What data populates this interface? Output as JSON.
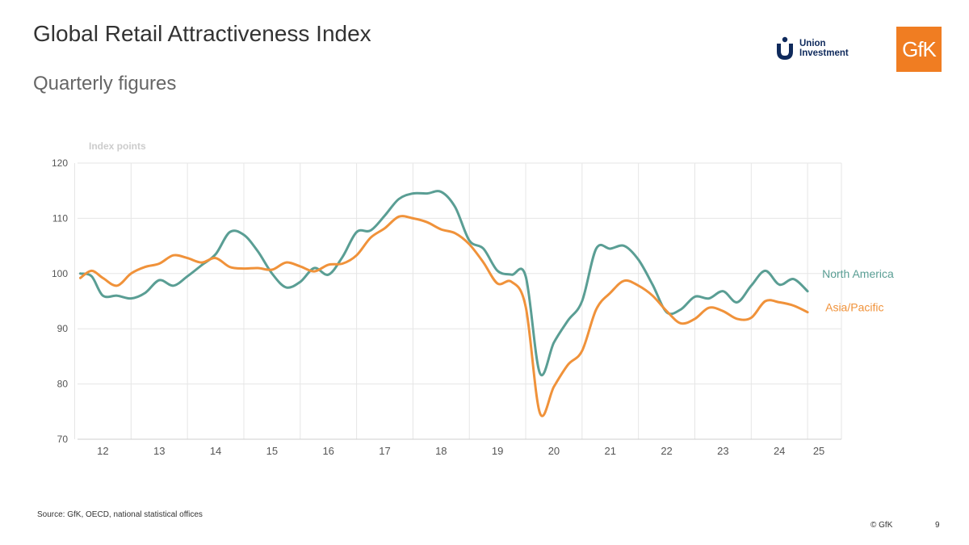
{
  "header": {
    "title": "Global Retail Attractiveness Index",
    "subtitle": "Quarterly figures"
  },
  "logos": {
    "union_investment_line1": "Union",
    "union_investment_line2": "Investment",
    "gfk": "GfK",
    "union_color": "#0f2a5c",
    "gfk_color": "#f07d22"
  },
  "footer": {
    "source": "Source: GfK, OECD, national statistical offices",
    "copyright": "© GfK",
    "page": "9"
  },
  "chart_data": {
    "type": "line",
    "ylabel": "Index points",
    "ylim": [
      70,
      120
    ],
    "yticks": [
      70,
      80,
      90,
      100,
      110,
      120
    ],
    "xlim": [
      2011.55,
      2025.1
    ],
    "xticks": [
      {
        "label": "12",
        "value": 2012.0
      },
      {
        "label": "13",
        "value": 2013.0
      },
      {
        "label": "14",
        "value": 2014.0
      },
      {
        "label": "15",
        "value": 2015.0
      },
      {
        "label": "16",
        "value": 2016.0
      },
      {
        "label": "17",
        "value": 2017.0
      },
      {
        "label": "18",
        "value": 2018.0
      },
      {
        "label": "19",
        "value": 2019.0
      },
      {
        "label": "20",
        "value": 2020.0
      },
      {
        "label": "21",
        "value": 2021.0
      },
      {
        "label": "22",
        "value": 2022.0
      },
      {
        "label": "23",
        "value": 2023.0
      },
      {
        "label": "24",
        "value": 2024.0
      },
      {
        "label": "25",
        "value": 2024.7
      }
    ],
    "gridlines_x": [
      2011.5,
      2012.5,
      2013.5,
      2014.5,
      2015.5,
      2016.5,
      2017.5,
      2018.5,
      2019.5,
      2020.5,
      2021.5,
      2022.5,
      2023.5,
      2024.5
    ],
    "grid": true,
    "series": [
      {
        "name": "North America",
        "color": "#5a9e94",
        "points": [
          [
            2011.6,
            100.0
          ],
          [
            2011.8,
            99.5
          ],
          [
            2012.0,
            96.0
          ],
          [
            2012.25,
            96.0
          ],
          [
            2012.5,
            95.5
          ],
          [
            2012.75,
            96.5
          ],
          [
            2013.0,
            98.8
          ],
          [
            2013.25,
            97.8
          ],
          [
            2013.5,
            99.5
          ],
          [
            2013.75,
            101.5
          ],
          [
            2014.0,
            103.5
          ],
          [
            2014.25,
            107.5
          ],
          [
            2014.5,
            107.0
          ],
          [
            2014.75,
            104.0
          ],
          [
            2015.0,
            100.0
          ],
          [
            2015.25,
            97.5
          ],
          [
            2015.5,
            98.5
          ],
          [
            2015.75,
            101.0
          ],
          [
            2016.0,
            99.8
          ],
          [
            2016.25,
            103.0
          ],
          [
            2016.5,
            107.5
          ],
          [
            2016.75,
            107.8
          ],
          [
            2017.0,
            110.5
          ],
          [
            2017.25,
            113.5
          ],
          [
            2017.5,
            114.5
          ],
          [
            2017.75,
            114.5
          ],
          [
            2018.0,
            114.8
          ],
          [
            2018.25,
            112.0
          ],
          [
            2018.5,
            106.0
          ],
          [
            2018.75,
            104.5
          ],
          [
            2019.0,
            100.5
          ],
          [
            2019.25,
            99.8
          ],
          [
            2019.5,
            99.5
          ],
          [
            2019.75,
            82.0
          ],
          [
            2020.0,
            87.5
          ],
          [
            2020.25,
            91.5
          ],
          [
            2020.5,
            95.0
          ],
          [
            2020.75,
            104.5
          ],
          [
            2021.0,
            104.5
          ],
          [
            2021.25,
            105.0
          ],
          [
            2021.5,
            102.5
          ],
          [
            2021.75,
            98.0
          ],
          [
            2022.0,
            93.0
          ],
          [
            2022.25,
            93.5
          ],
          [
            2022.5,
            95.8
          ],
          [
            2022.75,
            95.5
          ],
          [
            2023.0,
            96.8
          ],
          [
            2023.25,
            94.8
          ],
          [
            2023.5,
            97.8
          ],
          [
            2023.75,
            100.5
          ],
          [
            2024.0,
            98.0
          ],
          [
            2024.25,
            99.0
          ],
          [
            2024.5,
            96.8
          ]
        ]
      },
      {
        "name": "Asia/Pacific",
        "color": "#f0923a",
        "points": [
          [
            2011.6,
            99.2
          ],
          [
            2011.8,
            100.5
          ],
          [
            2012.0,
            99.2
          ],
          [
            2012.25,
            97.8
          ],
          [
            2012.5,
            100.0
          ],
          [
            2012.75,
            101.2
          ],
          [
            2013.0,
            101.8
          ],
          [
            2013.25,
            103.3
          ],
          [
            2013.5,
            102.8
          ],
          [
            2013.75,
            102.0
          ],
          [
            2014.0,
            102.8
          ],
          [
            2014.25,
            101.2
          ],
          [
            2014.5,
            100.9
          ],
          [
            2014.75,
            101.0
          ],
          [
            2015.0,
            100.7
          ],
          [
            2015.25,
            102.0
          ],
          [
            2015.5,
            101.3
          ],
          [
            2015.75,
            100.4
          ],
          [
            2016.0,
            101.6
          ],
          [
            2016.25,
            101.8
          ],
          [
            2016.5,
            103.3
          ],
          [
            2016.75,
            106.5
          ],
          [
            2017.0,
            108.2
          ],
          [
            2017.25,
            110.3
          ],
          [
            2017.5,
            110.0
          ],
          [
            2017.75,
            109.3
          ],
          [
            2018.0,
            108.0
          ],
          [
            2018.25,
            107.3
          ],
          [
            2018.5,
            105.3
          ],
          [
            2018.75,
            102.0
          ],
          [
            2019.0,
            98.2
          ],
          [
            2019.25,
            98.5
          ],
          [
            2019.5,
            94.0
          ],
          [
            2019.75,
            74.8
          ],
          [
            2020.0,
            79.5
          ],
          [
            2020.25,
            83.5
          ],
          [
            2020.5,
            86.0
          ],
          [
            2020.75,
            93.5
          ],
          [
            2021.0,
            96.5
          ],
          [
            2021.25,
            98.7
          ],
          [
            2021.5,
            97.8
          ],
          [
            2021.75,
            96.0
          ],
          [
            2022.0,
            93.2
          ],
          [
            2022.25,
            91.0
          ],
          [
            2022.5,
            91.8
          ],
          [
            2022.75,
            93.8
          ],
          [
            2023.0,
            93.2
          ],
          [
            2023.25,
            91.8
          ],
          [
            2023.5,
            92.0
          ],
          [
            2023.75,
            95.0
          ],
          [
            2024.0,
            94.8
          ],
          [
            2024.25,
            94.2
          ],
          [
            2024.5,
            93.0
          ]
        ]
      }
    ],
    "legend": "right-end labels"
  }
}
